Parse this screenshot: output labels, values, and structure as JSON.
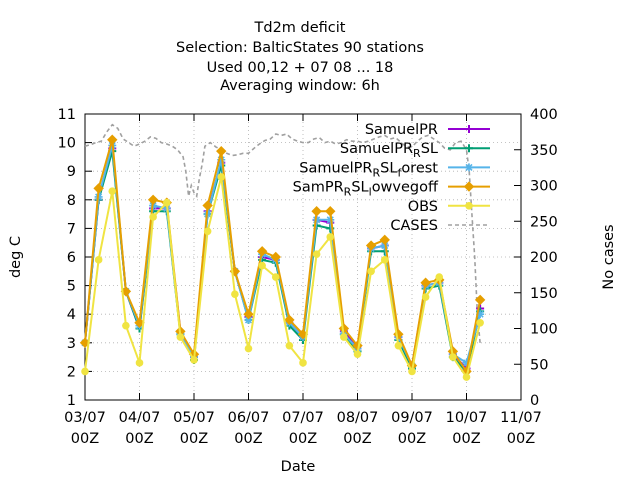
{
  "title_lines": [
    "Td2m deficit",
    "Selection: BalticStates     90 stations",
    "Used  00,12  + 07 08 ... 18",
    "Averaging window:  6h"
  ],
  "chart_data": {
    "type": "line",
    "title": "Td2m deficit",
    "xlabel": "Date",
    "ylabel": "deg C",
    "y2label": "No cases",
    "xlim": [
      0,
      8
    ],
    "ylim": [
      1,
      11
    ],
    "y2lim": [
      0,
      400
    ],
    "x_ticks": [
      {
        "v": 0,
        "l1": "03/07",
        "l2": "00Z"
      },
      {
        "v": 1,
        "l1": "04/07",
        "l2": "00Z"
      },
      {
        "v": 2,
        "l1": "05/07",
        "l2": "00Z"
      },
      {
        "v": 3,
        "l1": "06/07",
        "l2": "00Z"
      },
      {
        "v": 4,
        "l1": "07/07",
        "l2": "00Z"
      },
      {
        "v": 5,
        "l1": "08/07",
        "l2": "00Z"
      },
      {
        "v": 6,
        "l1": "09/07",
        "l2": "00Z"
      },
      {
        "v": 7,
        "l1": "10/07",
        "l2": "00Z"
      },
      {
        "v": 8,
        "l1": "11/07",
        "l2": "00Z"
      }
    ],
    "y_ticks": [
      "1",
      "2",
      "3",
      "4",
      "5",
      "6",
      "7",
      "8",
      "9",
      "10",
      "11"
    ],
    "y2_ticks": [
      "0",
      "50",
      "100",
      "150",
      "200",
      "250",
      "300",
      "350",
      "400"
    ],
    "legend_position": "top-right",
    "series": [
      {
        "name": "SamuelPR",
        "sub": "",
        "tail": "",
        "color": "#9400d3",
        "marker": "plus",
        "x": [
          0,
          0.25,
          0.5,
          0.75,
          1,
          1.25,
          1.5,
          1.75,
          2,
          2.25,
          2.5,
          2.75,
          3,
          3.25,
          3.5,
          3.75,
          4,
          4.25,
          4.5,
          4.75,
          5,
          5.25,
          5.5,
          5.75,
          6,
          6.25,
          6.5,
          6.75,
          7,
          7.25
        ],
        "y": [
          3.0,
          8.0,
          9.8,
          4.8,
          3.5,
          7.7,
          7.7,
          3.4,
          2.5,
          7.6,
          9.3,
          5.5,
          3.9,
          6.0,
          5.9,
          3.7,
          3.2,
          7.3,
          7.2,
          3.4,
          2.8,
          6.3,
          6.4,
          3.2,
          2.2,
          5.0,
          5.1,
          2.6,
          2.1,
          4.2
        ]
      },
      {
        "name": "SamuelPR",
        "sub": "R",
        "tail": "SL",
        "color": "#009e73",
        "marker": "plus",
        "x": [
          0,
          0.25,
          0.5,
          0.75,
          1,
          1.25,
          1.5,
          1.75,
          2,
          2.25,
          2.5,
          2.75,
          3,
          3.25,
          3.5,
          3.75,
          4,
          4.25,
          4.5,
          4.75,
          5,
          5.25,
          5.5,
          5.75,
          6,
          6.25,
          6.5,
          6.75,
          7,
          7.25
        ],
        "y": [
          3.0,
          8.0,
          9.7,
          4.8,
          3.5,
          7.6,
          7.6,
          3.3,
          2.4,
          7.5,
          9.2,
          5.5,
          3.8,
          5.9,
          5.8,
          3.6,
          3.1,
          7.1,
          7.0,
          3.3,
          2.7,
          6.2,
          6.2,
          3.1,
          2.1,
          4.9,
          5.0,
          2.5,
          2.0,
          4.1
        ]
      },
      {
        "name": "SamuelPR",
        "sub": "R",
        "tail": "SL",
        "sub2": "f",
        "tail2": "orest",
        "color": "#56b4e9",
        "marker": "star",
        "x": [
          0,
          0.25,
          0.5,
          0.75,
          1,
          1.25,
          1.5,
          1.75,
          2,
          2.25,
          2.5,
          2.75,
          3,
          3.25,
          3.5,
          3.75,
          4,
          4.25,
          4.5,
          4.75,
          5,
          5.25,
          5.5,
          5.75,
          6,
          6.25,
          6.5,
          6.75,
          7,
          7.25
        ],
        "y": [
          3.0,
          8.1,
          9.9,
          4.8,
          3.6,
          7.8,
          7.7,
          3.3,
          2.5,
          7.5,
          9.4,
          5.5,
          3.8,
          6.1,
          5.9,
          3.7,
          3.2,
          7.3,
          7.3,
          3.3,
          2.8,
          6.3,
          6.4,
          3.2,
          2.2,
          5.0,
          5.1,
          2.6,
          2.3,
          4.0
        ]
      },
      {
        "name": "SamPR",
        "sub": "R",
        "tail": "SL",
        "sub2": "l",
        "tail2": "owvegoff",
        "color": "#e69f00",
        "marker": "diamond",
        "x": [
          0,
          0.25,
          0.5,
          0.75,
          1,
          1.25,
          1.5,
          1.75,
          2,
          2.25,
          2.5,
          2.75,
          3,
          3.25,
          3.5,
          3.75,
          4,
          4.25,
          4.5,
          4.75,
          5,
          5.25,
          5.5,
          5.75,
          6,
          6.25,
          6.5,
          6.75,
          7,
          7.25
        ],
        "y": [
          3.0,
          8.4,
          10.1,
          4.8,
          3.7,
          8.0,
          7.9,
          3.4,
          2.6,
          7.8,
          9.7,
          5.5,
          4.0,
          6.2,
          6.0,
          3.8,
          3.3,
          7.6,
          7.6,
          3.5,
          2.9,
          6.4,
          6.6,
          3.3,
          2.2,
          5.1,
          5.2,
          2.7,
          2.0,
          4.5
        ]
      },
      {
        "name": "OBS",
        "sub": "",
        "tail": "",
        "color": "#f0e442",
        "marker": "circle",
        "x": [
          0,
          0.25,
          0.5,
          0.75,
          1,
          1.25,
          1.5,
          1.75,
          2,
          2.25,
          2.5,
          2.75,
          3,
          3.25,
          3.5,
          3.75,
          4,
          4.25,
          4.5,
          4.75,
          5,
          5.25,
          5.5,
          5.75,
          6,
          6.25,
          6.5,
          6.75,
          7,
          7.25
        ],
        "y": [
          2.0,
          5.9,
          8.3,
          3.6,
          2.3,
          7.4,
          7.9,
          3.2,
          2.4,
          6.9,
          8.8,
          4.7,
          2.8,
          5.7,
          5.3,
          2.9,
          2.3,
          6.1,
          6.7,
          3.2,
          2.6,
          5.5,
          5.9,
          2.9,
          2.0,
          4.6,
          5.3,
          2.5,
          1.8,
          3.7
        ]
      }
    ],
    "cases": {
      "name": "CASES",
      "color": "#a0a0a0",
      "dashed": true,
      "x": [
        0,
        0.1,
        0.2,
        0.3,
        0.4,
        0.5,
        0.6,
        0.7,
        0.8,
        0.9,
        1,
        1.1,
        1.2,
        1.3,
        1.4,
        1.5,
        1.6,
        1.7,
        1.8,
        1.85,
        1.9,
        1.95,
        2,
        2.05,
        2.1,
        2.15,
        2.2,
        2.3,
        2.4,
        2.5,
        2.6,
        2.7,
        2.8,
        2.9,
        3,
        3.1,
        3.2,
        3.3,
        3.4,
        3.5,
        3.6,
        3.7,
        3.8,
        3.9,
        4,
        4.1,
        4.2,
        4.3,
        4.4,
        4.5,
        4.6,
        4.7,
        4.8,
        4.9,
        5,
        5.1,
        5.2,
        5.3,
        5.4,
        5.5,
        5.6,
        5.7,
        5.8,
        5.9,
        6,
        6.1,
        6.2,
        6.3,
        6.4,
        6.5,
        6.6,
        6.7,
        6.8,
        6.9,
        7,
        7.05,
        7.1,
        7.15,
        7.2,
        7.25
      ],
      "y": [
        355,
        357,
        360,
        362,
        375,
        385,
        380,
        365,
        360,
        355,
        358,
        362,
        368,
        366,
        360,
        358,
        355,
        350,
        340,
        320,
        285,
        300,
        290,
        285,
        310,
        330,
        355,
        360,
        354,
        350,
        345,
        342,
        343,
        345,
        345,
        352,
        358,
        363,
        365,
        372,
        370,
        372,
        365,
        362,
        360,
        360,
        365,
        367,
        360,
        362,
        358,
        360,
        364,
        362,
        362,
        360,
        362,
        365,
        368,
        370,
        365,
        367,
        360,
        354,
        354,
        362,
        368,
        370,
        365,
        360,
        352,
        350,
        360,
        362,
        350,
        320,
        260,
        200,
        120,
        80
      ]
    }
  }
}
